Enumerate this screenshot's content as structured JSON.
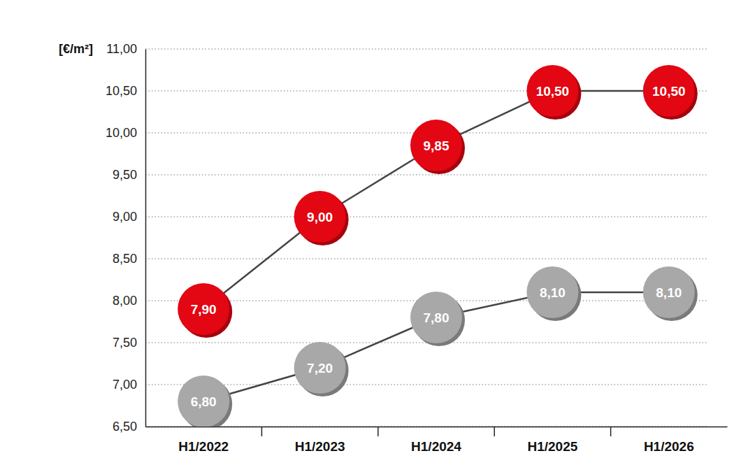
{
  "chart_data": {
    "type": "line",
    "y_label": "[€/m²]",
    "categories": [
      "H1/2022",
      "H1/2023",
      "H1/2024",
      "H1/2025",
      "H1/2026"
    ],
    "series": [
      {
        "color": "#e30613",
        "values": [
          7.9,
          9.0,
          9.85,
          10.5,
          10.5
        ],
        "value_labels": [
          "7,90",
          "9,00",
          "9,85",
          "10,50",
          "10,50"
        ]
      },
      {
        "color": "#a8a8a8",
        "values": [
          6.8,
          7.2,
          7.8,
          8.1,
          8.1
        ],
        "value_labels": [
          "6,80",
          "7,20",
          "7,80",
          "8,10",
          "8,10"
        ]
      }
    ],
    "ylim": [
      6.5,
      11.0
    ],
    "yticks": [
      {
        "value": 6.5,
        "label": "6,50"
      },
      {
        "value": 7.0,
        "label": "7,00"
      },
      {
        "value": 7.5,
        "label": "7,50"
      },
      {
        "value": 8.0,
        "label": "8,00"
      },
      {
        "value": 8.5,
        "label": "8,50"
      },
      {
        "value": 9.0,
        "label": "9,00"
      },
      {
        "value": 9.5,
        "label": "9,50"
      },
      {
        "value": 10.0,
        "label": "10,00"
      },
      {
        "value": 10.5,
        "label": "10,50"
      },
      {
        "value": 11.0,
        "label": "11,00"
      }
    ],
    "grid": true,
    "marker": "circle",
    "data_labels": true
  }
}
